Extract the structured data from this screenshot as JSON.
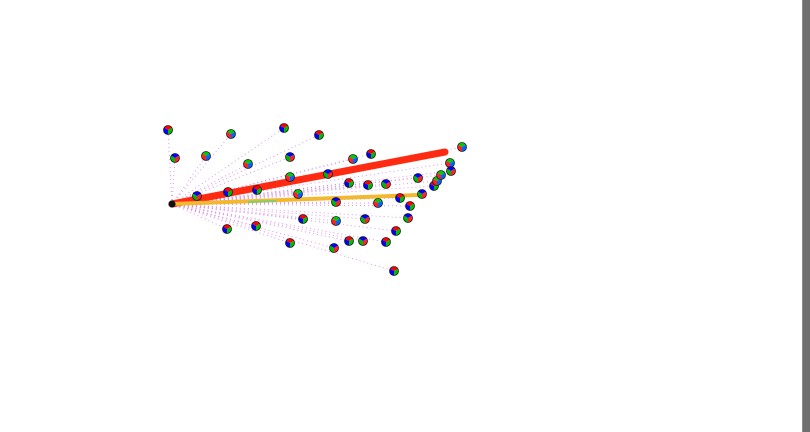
{
  "scene": {
    "background": "#ffffff",
    "origin_color": "#111111",
    "dotted_line_color": "#d47ae6",
    "vector_colors": {
      "red": "#ff2a12",
      "yellow": "#f2b82f"
    },
    "marker_palettes": [
      [
        "#ff0000",
        "#00bd00",
        "#0000ff"
      ],
      [
        "#00cc00",
        "#0066ff",
        "#ff2020"
      ],
      [
        "#0000ff",
        "#ff2222",
        "#00b800"
      ]
    ]
  }
}
